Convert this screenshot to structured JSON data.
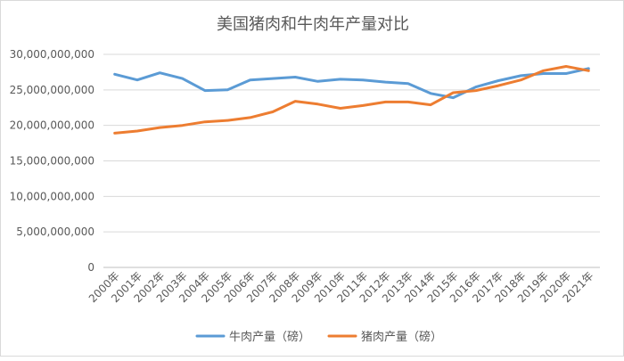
{
  "chart_data": {
    "type": "line",
    "title": "美国猪肉和牛肉年产量对比",
    "xlabel": "",
    "ylabel": "",
    "ylim": [
      0,
      30000000000
    ],
    "yticks": [
      "0",
      "5,000,000,000",
      "10,000,000,000",
      "15,000,000,000",
      "20,000,000,000",
      "25,000,000,000",
      "30,000,000,000"
    ],
    "ytick_values": [
      0,
      5000000000,
      10000000000,
      15000000000,
      20000000000,
      25000000000,
      30000000000
    ],
    "grid": true,
    "legend": "bottom",
    "categories": [
      "2000年",
      "2001年",
      "2002年",
      "2003年",
      "2004年",
      "2005年",
      "2006年",
      "2007年",
      "2008年",
      "2009年",
      "2010年",
      "2011年",
      "2012年",
      "2013年",
      "2014年",
      "2015年",
      "2016年",
      "2017年",
      "2018年",
      "2019年",
      "2020年",
      "2021年"
    ],
    "series": [
      {
        "name": "牛肉产量（磅）",
        "color": "#5b9bd5",
        "values": [
          27200000000,
          26400000000,
          27400000000,
          26600000000,
          24900000000,
          25000000000,
          26400000000,
          26600000000,
          26800000000,
          26200000000,
          26500000000,
          26400000000,
          26100000000,
          25900000000,
          24500000000,
          23900000000,
          25400000000,
          26300000000,
          27000000000,
          27300000000,
          27300000000,
          28000000000
        ]
      },
      {
        "name": "猪肉产量（磅）",
        "color": "#ed7d31",
        "values": [
          18900000000,
          19200000000,
          19700000000,
          20000000000,
          20500000000,
          20700000000,
          21100000000,
          21900000000,
          23400000000,
          23000000000,
          22400000000,
          22800000000,
          23300000000,
          23300000000,
          22900000000,
          24600000000,
          24900000000,
          25600000000,
          26400000000,
          27700000000,
          28300000000,
          27700000000
        ]
      }
    ]
  }
}
